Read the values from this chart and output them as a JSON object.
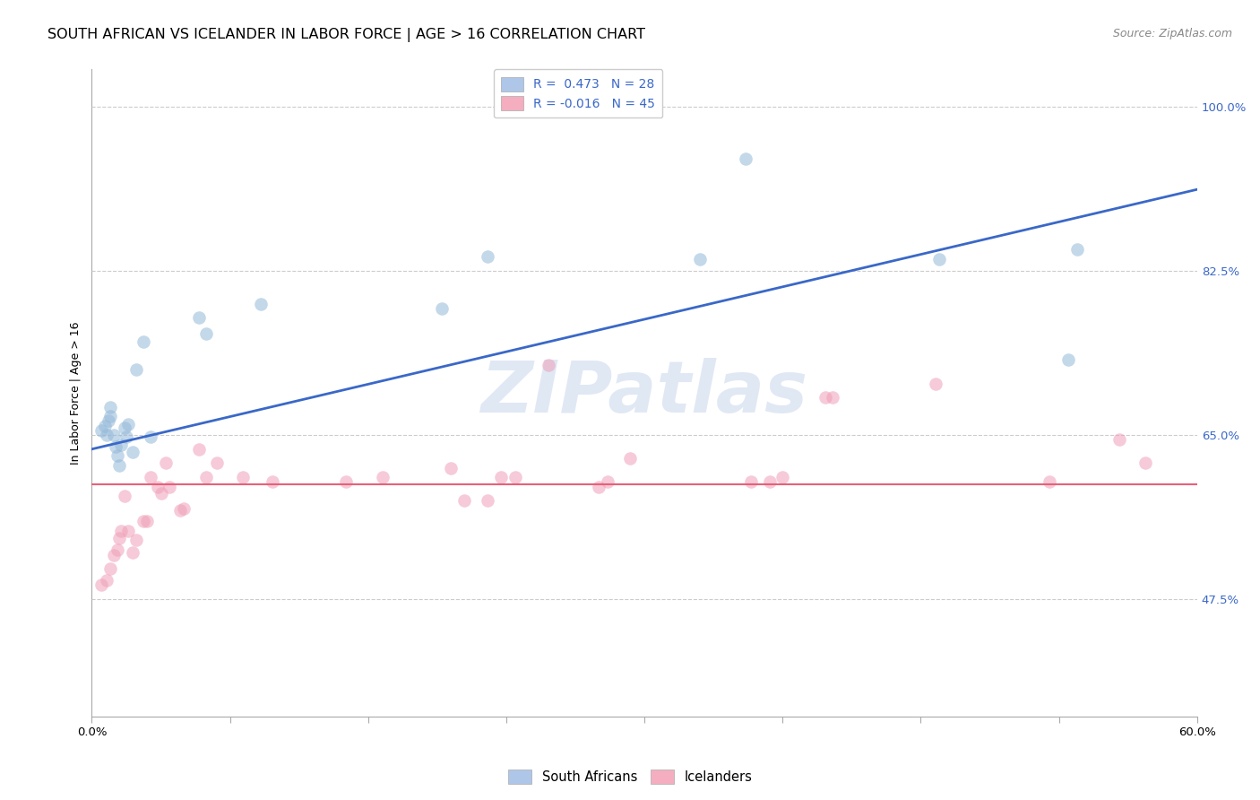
{
  "title": "SOUTH AFRICAN VS ICELANDER IN LABOR FORCE | AGE > 16 CORRELATION CHART",
  "source": "Source: ZipAtlas.com",
  "ylabel": "In Labor Force | Age > 16",
  "xlim": [
    0.0,
    0.6
  ],
  "ylim": [
    0.35,
    1.04
  ],
  "y_ticks": [
    0.475,
    0.65,
    0.825,
    1.0
  ],
  "y_tick_labels": [
    "47.5%",
    "65.0%",
    "82.5%",
    "100.0%"
  ],
  "x_ticks": [
    0.0,
    0.075,
    0.15,
    0.225,
    0.3,
    0.375,
    0.45,
    0.525,
    0.6
  ],
  "x_tick_labels_show": [
    "0.0%",
    "",
    "",
    "",
    "",
    "",
    "",
    "",
    "60.0%"
  ],
  "legend_entries": [
    {
      "label": "R =  0.473   N = 28",
      "color": "#aec6e8"
    },
    {
      "label": "R = -0.016   N = 45",
      "color": "#f4aec0"
    }
  ],
  "blue_dot_color": "#92b8d8",
  "pink_dot_color": "#f0a0b8",
  "blue_line_color": "#3a68c8",
  "pink_line_color": "#e8607a",
  "watermark_text": "ZIPatlas",
  "south_african_x": [
    0.005,
    0.007,
    0.008,
    0.009,
    0.01,
    0.01,
    0.012,
    0.013,
    0.014,
    0.015,
    0.016,
    0.018,
    0.019,
    0.02,
    0.022,
    0.024,
    0.028,
    0.032,
    0.058,
    0.062,
    0.092,
    0.19,
    0.215,
    0.33,
    0.355,
    0.46,
    0.53,
    0.535
  ],
  "south_african_y": [
    0.655,
    0.66,
    0.65,
    0.665,
    0.68,
    0.67,
    0.65,
    0.638,
    0.628,
    0.618,
    0.64,
    0.658,
    0.648,
    0.662,
    0.632,
    0.72,
    0.75,
    0.648,
    0.775,
    0.758,
    0.79,
    0.785,
    0.84,
    0.838,
    0.945,
    0.838,
    0.73,
    0.848
  ],
  "icelander_x": [
    0.005,
    0.008,
    0.01,
    0.012,
    0.014,
    0.015,
    0.016,
    0.018,
    0.02,
    0.022,
    0.024,
    0.028,
    0.03,
    0.032,
    0.036,
    0.038,
    0.04,
    0.042,
    0.048,
    0.05,
    0.058,
    0.062,
    0.068,
    0.082,
    0.098,
    0.138,
    0.158,
    0.195,
    0.202,
    0.215,
    0.222,
    0.23,
    0.248,
    0.275,
    0.28,
    0.292,
    0.358,
    0.368,
    0.375,
    0.398,
    0.402,
    0.458,
    0.52,
    0.558,
    0.572
  ],
  "icelander_y": [
    0.49,
    0.495,
    0.508,
    0.522,
    0.528,
    0.54,
    0.548,
    0.585,
    0.548,
    0.525,
    0.538,
    0.558,
    0.558,
    0.605,
    0.595,
    0.588,
    0.62,
    0.595,
    0.57,
    0.572,
    0.635,
    0.605,
    0.62,
    0.605,
    0.6,
    0.6,
    0.605,
    0.615,
    0.58,
    0.58,
    0.605,
    0.605,
    0.725,
    0.595,
    0.6,
    0.625,
    0.6,
    0.6,
    0.605,
    0.69,
    0.69,
    0.705,
    0.6,
    0.645,
    0.62
  ],
  "blue_line_x": [
    0.0,
    0.6
  ],
  "blue_line_y": [
    0.635,
    0.912
  ],
  "pink_line_y": 0.597,
  "title_fontsize": 11.5,
  "source_fontsize": 9,
  "axis_label_fontsize": 9,
  "tick_fontsize": 9.5,
  "legend_fontsize": 10,
  "dot_size": 110,
  "dot_alpha": 0.55,
  "grid_color": "#cccccc",
  "spine_color": "#aaaaaa",
  "tick_color": "#3a68c8"
}
